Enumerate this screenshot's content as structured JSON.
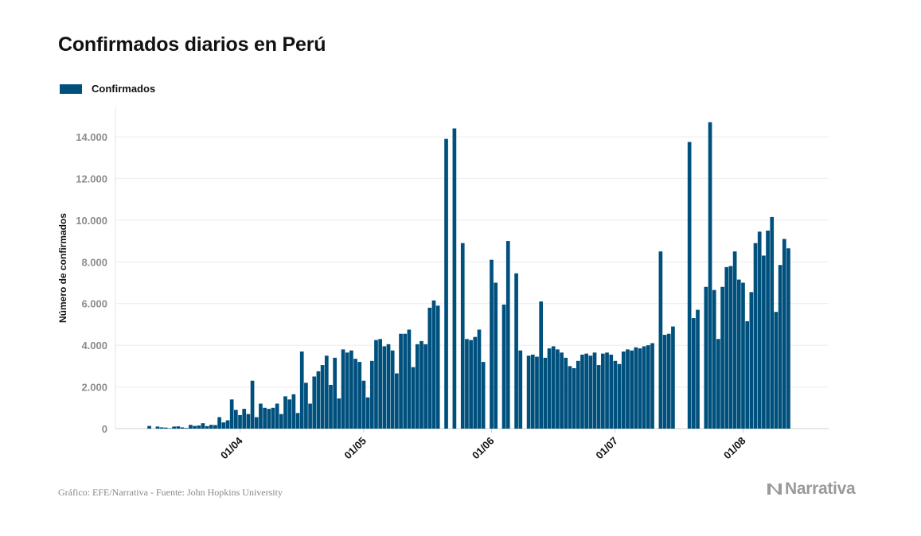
{
  "title": "Confirmados diarios en Perú",
  "legend": {
    "label": "Confirmados",
    "color": "#00507d"
  },
  "footer": {
    "source": "Gráfico: EFE/Narrativa - Fuente: John Hopkins University",
    "brand": "Narrativa"
  },
  "chart_data": {
    "type": "bar",
    "title": "Confirmados diarios en Perú",
    "ylabel": "Número de confirmados",
    "xlabel": "",
    "ylim": [
      0,
      15000
    ],
    "yticks": [
      0,
      2000,
      4000,
      6000,
      8000,
      10000,
      12000,
      14000
    ],
    "ytick_labels": [
      "0",
      "2.000",
      "4.000",
      "6.000",
      "8.000",
      "10.000",
      "12.000",
      "14.000"
    ],
    "xticks": [
      {
        "label": "01/04",
        "date": "2020-04-01"
      },
      {
        "label": "01/05",
        "date": "2020-05-01"
      },
      {
        "label": "01/06",
        "date": "2020-06-01"
      },
      {
        "label": "01/07",
        "date": "2020-07-01"
      },
      {
        "label": "01/08",
        "date": "2020-08-01"
      }
    ],
    "grid": true,
    "legend_position": "top-left",
    "start_date": "2020-03-06",
    "end_date": "2020-08-26",
    "series": [
      {
        "name": "Confirmados",
        "color": "#00507d",
        "values": [
          0,
          0,
          0,
          0,
          130,
          0,
          100,
          60,
          50,
          20,
          100,
          110,
          60,
          30,
          180,
          130,
          150,
          260,
          120,
          180,
          170,
          550,
          300,
          400,
          1400,
          900,
          650,
          950,
          700,
          2300,
          550,
          1200,
          1000,
          950,
          1000,
          1200,
          700,
          1550,
          1400,
          1650,
          750,
          3700,
          2200,
          1200,
          2500,
          2750,
          3050,
          3500,
          2100,
          3400,
          1450,
          3800,
          3650,
          3750,
          3350,
          3200,
          2300,
          1500,
          3250,
          4250,
          4300,
          3950,
          4050,
          3750,
          2650,
          4550,
          4550,
          4750,
          2950,
          4050,
          4200,
          4050,
          5800,
          6150,
          5900,
          0,
          13900,
          0,
          14400,
          0,
          8900,
          4300,
          4250,
          4400,
          4750,
          3200,
          0,
          8100,
          7000,
          0,
          5950,
          9000,
          0,
          7450,
          3750,
          0,
          3500,
          3550,
          3450,
          6100,
          3400,
          3850,
          3950,
          3800,
          3650,
          3400,
          3000,
          2900,
          3250,
          3550,
          3600,
          3500,
          3650,
          3050,
          3600,
          3650,
          3550,
          3250,
          3100,
          3700,
          3800,
          3750,
          3900,
          3850,
          3950,
          4000,
          4100,
          0,
          8500,
          4500,
          4550,
          4900,
          0,
          0,
          0,
          13750,
          5300,
          5700,
          0,
          6800,
          14700,
          6650,
          4300,
          6800,
          7750,
          7800,
          8500,
          7150,
          7000,
          5150,
          6550,
          8900,
          9450,
          8300,
          9500,
          10150,
          5600,
          7850,
          9100,
          8650
        ]
      }
    ]
  }
}
